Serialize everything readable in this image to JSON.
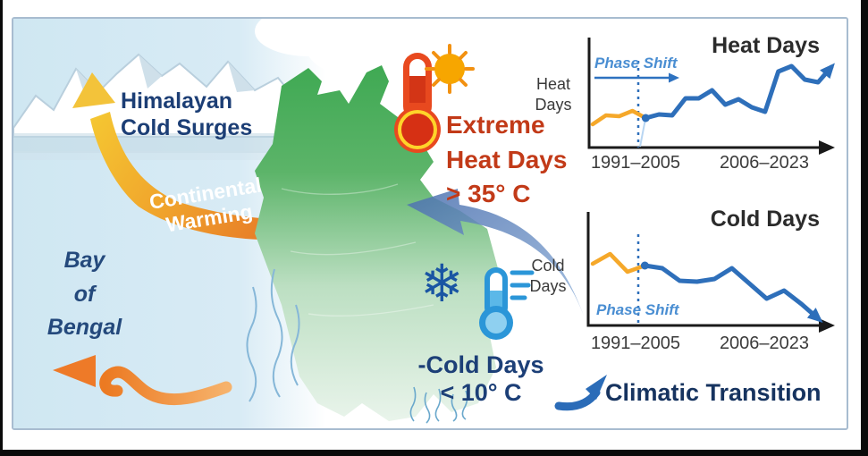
{
  "figure": {
    "description_labels": {
      "himalayan_line1": "Himalayan",
      "himalayan_line2": "Cold Surges",
      "continental_line1": "Continental",
      "continental_line2": "Warming",
      "bay_line1": "Bay",
      "bay_line2": "of",
      "bay_line3": "Bengal"
    },
    "callouts": {
      "heat_line1": "Extreme",
      "heat_line2": "Heat Days",
      "heat_line3": "> 35° C",
      "cold_line1": "-Cold Days",
      "cold_line2": "< 10° C"
    },
    "transition_label": "Climatic Transition"
  },
  "icons": {
    "sun": "sun-icon",
    "thermometer_hot": "thermometer-hot-icon",
    "thermometer_cold": "thermometer-cold-icon",
    "snowflake_glyph": "❄",
    "up_arrow_to_mountains": "cold-surge-arrow",
    "warming_band_arrow": "continental-warming-arrow",
    "sea_outflow_arrow": "bay-outflow-arrow",
    "cold-inflow-arrow": "cold-inflow-arrow",
    "transition_swoosh": "transition-arrow-icon"
  },
  "colors": {
    "navy_text": "#1c3e75",
    "heat_red_text": "#c23a18",
    "panel_border": "#a8bcd0",
    "sky": "#cfe7f2",
    "map_green": "#45ab57",
    "swoosh_yellow": "#f5c533",
    "swoosh_orange": "#ef8c2a",
    "arrowhead_salmon": "#e4604a",
    "line_orange": "#f5a82a",
    "line_blue": "#2e6fba",
    "phase_blue": "#4a8ed2",
    "axis_black": "#1a1a1a"
  },
  "chart_data": [
    {
      "type": "line",
      "title": "Heat Days",
      "ylabel_lines": [
        "Heat",
        "Days"
      ],
      "x_tick_labels": [
        "1991–2005",
        "2006–2023"
      ],
      "annotation": "Phase Shift",
      "trend": "increasing",
      "end_arrow": "up-right",
      "ylim": [
        0,
        100
      ],
      "units": "relative (y-axis unlabeled)",
      "series": [
        {
          "name": "1991–2005",
          "color": "#f5a82a",
          "values": [
            26,
            36,
            35,
            41,
            33
          ]
        },
        {
          "name": "2006–2023",
          "color": "#2e6fba",
          "values": [
            33,
            37,
            36,
            55,
            55,
            64,
            48,
            54,
            45,
            40,
            85,
            91,
            76,
            73,
            90
          ]
        }
      ]
    },
    {
      "type": "line",
      "title": "Cold Days",
      "ylabel_lines": [
        "Cold",
        "Days"
      ],
      "x_tick_labels": [
        "1991–2005",
        "2006–2023"
      ],
      "annotation": "Phase Shift",
      "trend": "decreasing",
      "end_arrow": "down-right",
      "ylim": [
        0,
        100
      ],
      "units": "relative (y-axis unlabeled)",
      "series": [
        {
          "name": "1991–2005",
          "color": "#f5a82a",
          "values": [
            69,
            80,
            60,
            67
          ]
        },
        {
          "name": "2006–2023",
          "color": "#2e6fba",
          "values": [
            67,
            64,
            50,
            49,
            52,
            64,
            47,
            30,
            39,
            24,
            7
          ]
        }
      ]
    }
  ]
}
